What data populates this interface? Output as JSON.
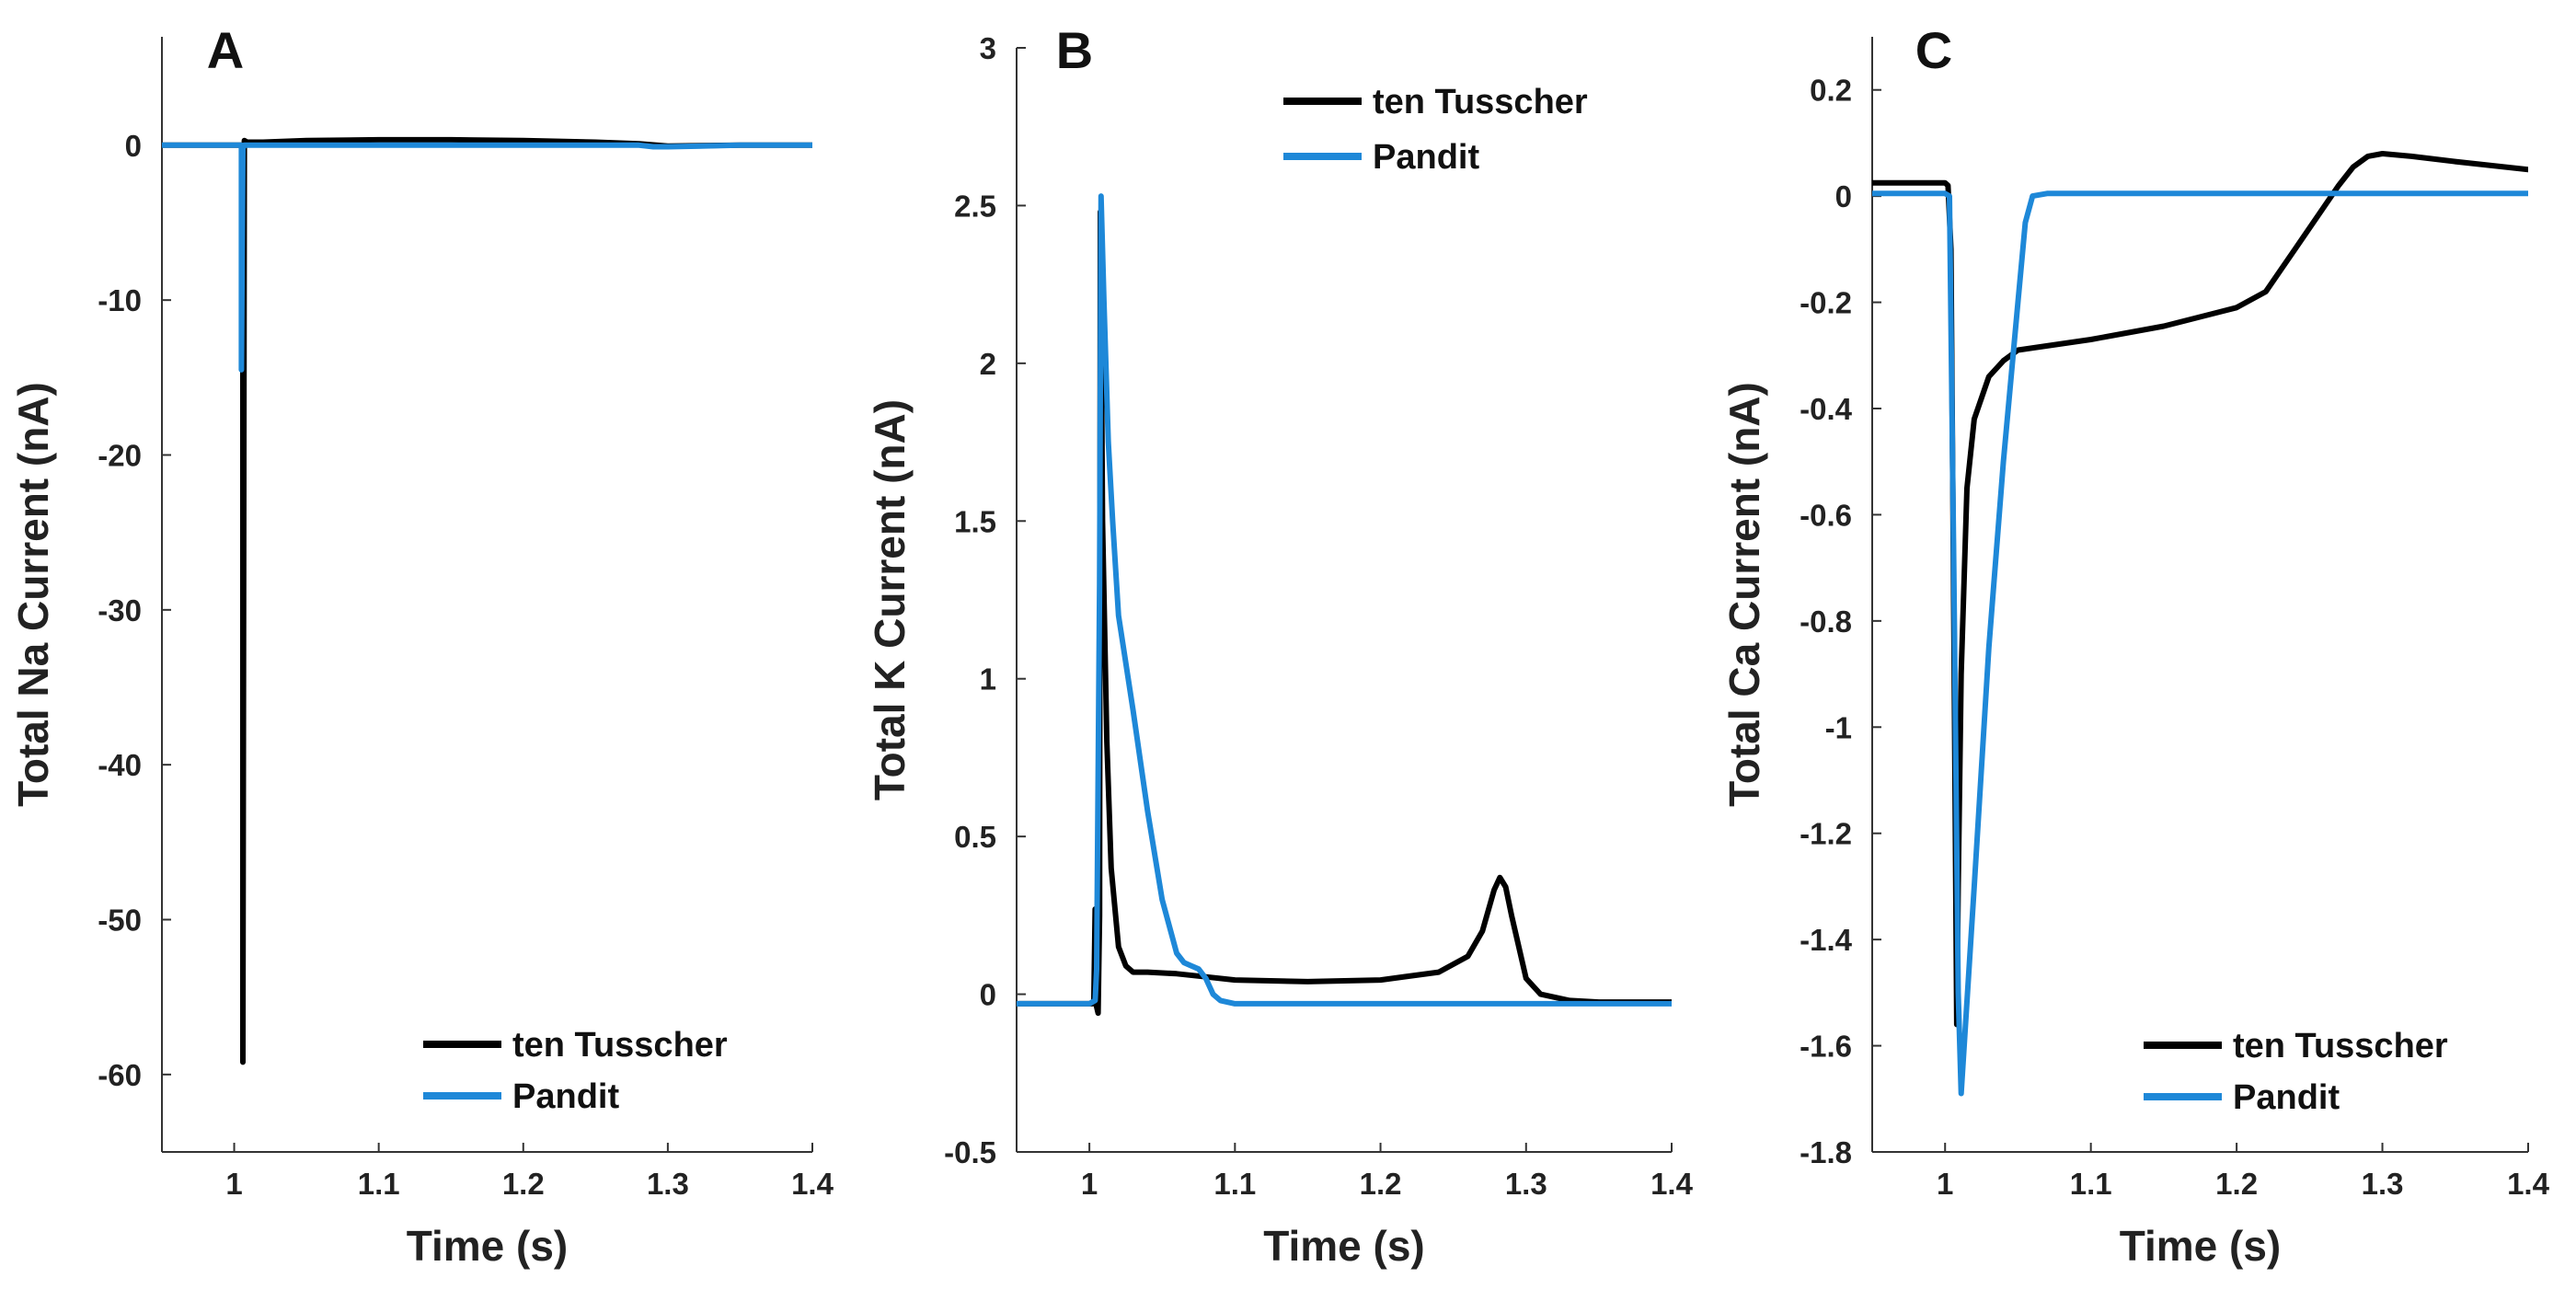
{
  "chart_data": [
    {
      "panel": "A",
      "type": "line",
      "ylabel": "Total Na Current (nA)",
      "xlabel": "Time (s)",
      "xlim": [
        0.95,
        1.4
      ],
      "ylim": [
        -65,
        7
      ],
      "xticks": [
        1,
        1.1,
        1.2,
        1.3,
        1.4
      ],
      "xtick_labels": [
        "1",
        "1.1",
        "1.2",
        "1.3",
        "1.4"
      ],
      "yticks": [
        0,
        -10,
        -20,
        -30,
        -40,
        -50,
        -60
      ],
      "ytick_labels": [
        "0",
        "-10",
        "-20",
        "-30",
        "-40",
        "-50",
        "-60"
      ],
      "legend_position": "bottom-right",
      "series": [
        {
          "name": "ten Tusscher",
          "color": "#000000",
          "x": [
            0.95,
            1.0,
            1.004,
            1.006,
            1.006,
            1.007,
            1.009,
            1.02,
            1.05,
            1.1,
            1.15,
            1.2,
            1.25,
            1.28,
            1.3,
            1.35,
            1.4
          ],
          "y": [
            0,
            0,
            0,
            0,
            -59.2,
            0.3,
            0.2,
            0.2,
            0.3,
            0.35,
            0.35,
            0.3,
            0.2,
            0.1,
            -0.05,
            0,
            0
          ]
        },
        {
          "name": "Pandit",
          "color": "#1E88D8",
          "x": [
            0.95,
            1.0,
            1.004,
            1.005,
            1.005,
            1.006,
            1.007,
            1.02,
            1.1,
            1.2,
            1.25,
            1.28,
            1.29,
            1.3,
            1.35,
            1.4
          ],
          "y": [
            0,
            0,
            0,
            0,
            -14.5,
            -0.2,
            0,
            0,
            0,
            0,
            0,
            0,
            -0.1,
            -0.1,
            0,
            0
          ]
        }
      ]
    },
    {
      "panel": "B",
      "type": "line",
      "ylabel": "Total K Current (nA)",
      "xlabel": "Time (s)",
      "xlim": [
        0.95,
        1.4
      ],
      "ylim": [
        -0.5,
        3
      ],
      "xticks": [
        1,
        1.1,
        1.2,
        1.3,
        1.4
      ],
      "xtick_labels": [
        "1",
        "1.1",
        "1.2",
        "1.3",
        "1.4"
      ],
      "yticks": [
        3,
        2.5,
        2,
        1.5,
        1,
        0.5,
        0,
        -0.5
      ],
      "ytick_labels": [
        "3",
        "2.5",
        "2",
        "1.5",
        "1",
        "0.5",
        "0",
        "-0.5"
      ],
      "legend_position": "top-right",
      "series": [
        {
          "name": "ten Tusscher",
          "color": "#000000",
          "x": [
            0.95,
            1.0,
            1.003,
            1.004,
            1.005,
            1.006,
            1.007,
            1.0075,
            1.008,
            1.009,
            1.012,
            1.015,
            1.02,
            1.025,
            1.03,
            1.04,
            1.06,
            1.08,
            1.1,
            1.15,
            1.2,
            1.24,
            1.26,
            1.27,
            1.278,
            1.282,
            1.286,
            1.29,
            1.3,
            1.31,
            1.33,
            1.35,
            1.4
          ],
          "y": [
            -0.03,
            -0.03,
            -0.03,
            0.27,
            -0.04,
            -0.06,
            0.25,
            2.48,
            2.2,
            1.5,
            0.8,
            0.4,
            0.15,
            0.09,
            0.07,
            0.07,
            0.065,
            0.055,
            0.045,
            0.04,
            0.045,
            0.07,
            0.12,
            0.2,
            0.33,
            0.37,
            0.34,
            0.25,
            0.05,
            0.0,
            -0.02,
            -0.025,
            -0.025
          ]
        },
        {
          "name": "Pandit",
          "color": "#1E88D8",
          "x": [
            0.95,
            1.0,
            1.004,
            1.005,
            1.007,
            1.008,
            1.01,
            1.013,
            1.016,
            1.02,
            1.03,
            1.04,
            1.05,
            1.06,
            1.065,
            1.07,
            1.075,
            1.08,
            1.085,
            1.09,
            1.1,
            1.15,
            1.2,
            1.3,
            1.4
          ],
          "y": [
            -0.03,
            -0.03,
            -0.02,
            0.08,
            1.3,
            2.53,
            2.2,
            1.75,
            1.5,
            1.2,
            0.9,
            0.58,
            0.3,
            0.13,
            0.1,
            0.09,
            0.08,
            0.05,
            0.0,
            -0.02,
            -0.03,
            -0.03,
            -0.03,
            -0.03,
            -0.03
          ]
        }
      ]
    },
    {
      "panel": "C",
      "type": "line",
      "ylabel": "Total Ca Current (nA)",
      "xlabel": "Time (s)",
      "xlim": [
        0.95,
        1.4
      ],
      "ylim": [
        -1.8,
        0.3
      ],
      "xticks": [
        1,
        1.1,
        1.2,
        1.3,
        1.4
      ],
      "xtick_labels": [
        "1",
        "1.1",
        "1.2",
        "1.3",
        "1.4"
      ],
      "yticks": [
        0.2,
        0,
        -0.2,
        -0.4,
        -0.6,
        -0.8,
        -1,
        -1.2,
        -1.4,
        -1.6,
        -1.8
      ],
      "ytick_labels": [
        "0.2",
        "0",
        "-0.2",
        "-0.4",
        "-0.6",
        "-0.8",
        "-1",
        "-1.2",
        "-1.4",
        "-1.6",
        "-1.8"
      ],
      "legend_position": "bottom-right",
      "series": [
        {
          "name": "ten Tusscher",
          "color": "#000000",
          "x": [
            0.95,
            1.0,
            1.002,
            1.004,
            1.006,
            1.008,
            1.009,
            1.011,
            1.015,
            1.02,
            1.03,
            1.04,
            1.05,
            1.1,
            1.15,
            1.2,
            1.22,
            1.24,
            1.26,
            1.27,
            1.28,
            1.29,
            1.3,
            1.32,
            1.35,
            1.4
          ],
          "y": [
            0.025,
            0.025,
            0.02,
            -0.1,
            -0.8,
            -1.56,
            -1.3,
            -0.9,
            -0.55,
            -0.42,
            -0.34,
            -0.31,
            -0.29,
            -0.27,
            -0.245,
            -0.21,
            -0.18,
            -0.1,
            -0.02,
            0.02,
            0.055,
            0.075,
            0.08,
            0.075,
            0.065,
            0.05
          ]
        },
        {
          "name": "Pandit",
          "color": "#1E88D8",
          "x": [
            0.95,
            1.0,
            1.003,
            1.006,
            1.009,
            1.011,
            1.02,
            1.03,
            1.04,
            1.05,
            1.055,
            1.06,
            1.07,
            1.1,
            1.2,
            1.3,
            1.4
          ],
          "y": [
            0.005,
            0.005,
            0.0,
            -0.7,
            -1.5,
            -1.69,
            -1.3,
            -0.85,
            -0.5,
            -0.2,
            -0.05,
            0.0,
            0.005,
            0.005,
            0.005,
            0.005,
            0.005
          ]
        }
      ]
    }
  ]
}
